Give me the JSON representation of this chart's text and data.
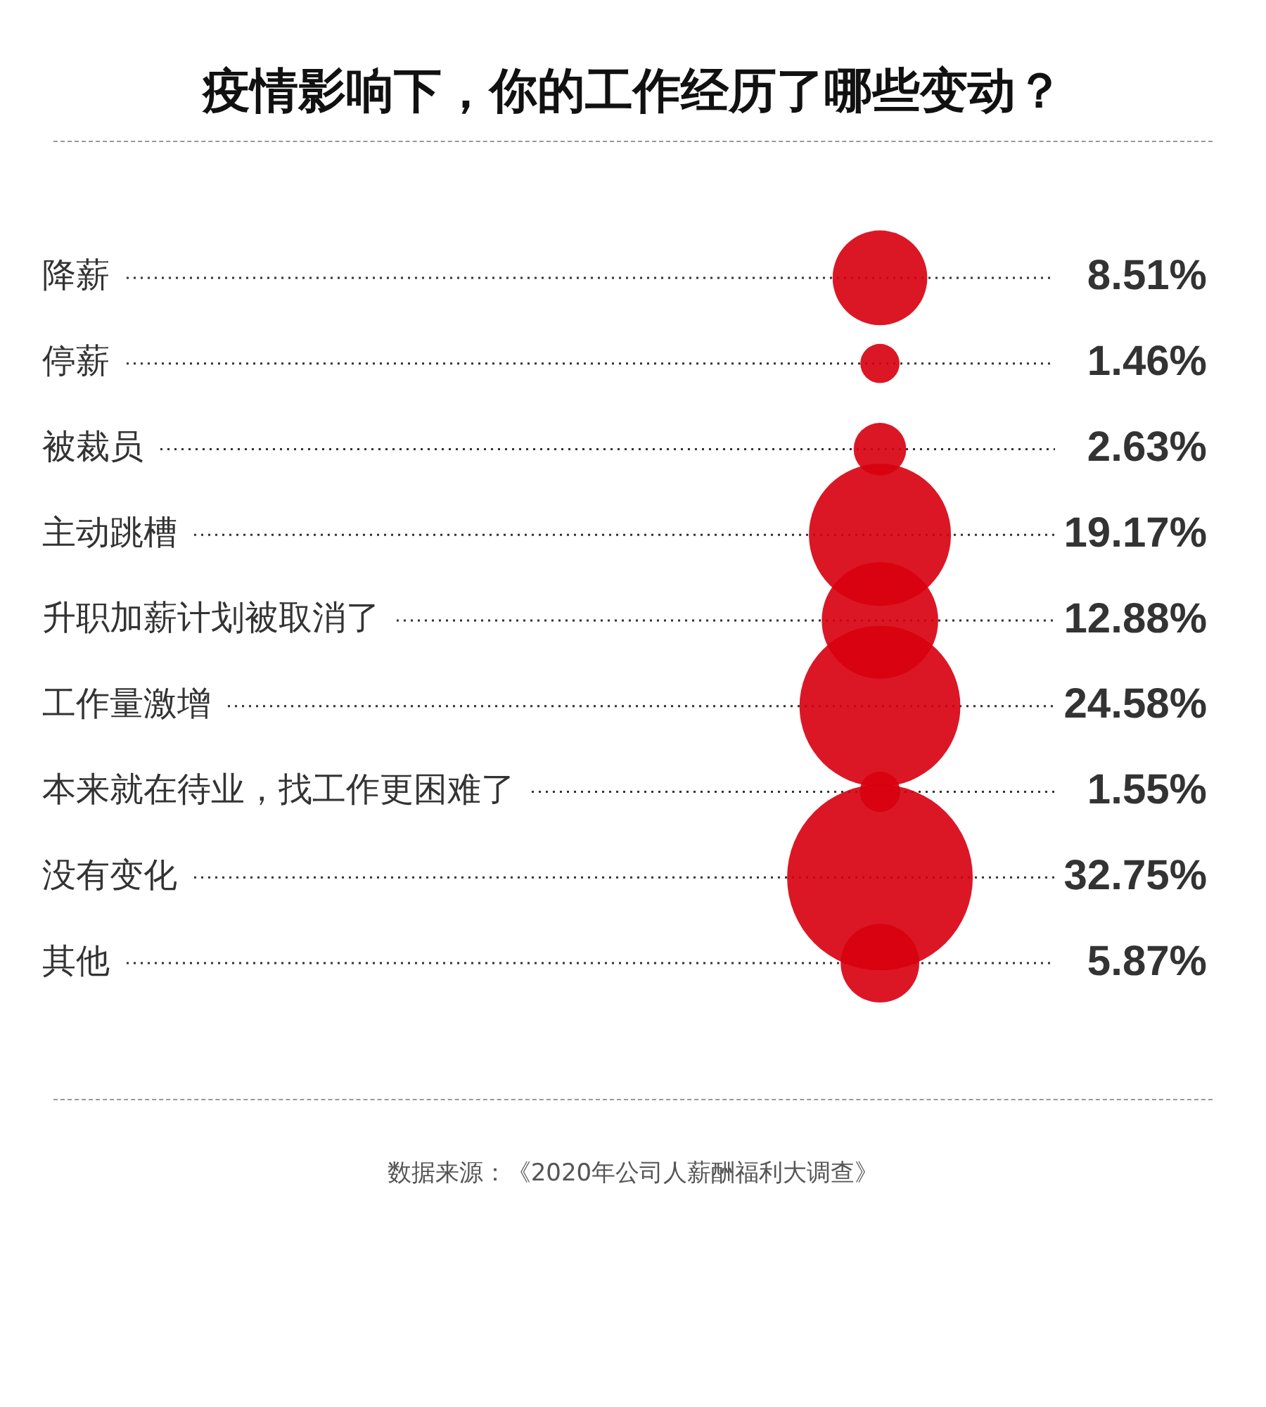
{
  "chart_data": {
    "type": "other",
    "title": "疫情影响下，你的工作经历了哪些变动？",
    "categories": [
      "降薪",
      "停薪",
      "被裁员",
      "主动跳槽",
      "升职加薪计划被取消了",
      "工作量激增",
      "本来就在待业，找工作更困难了",
      "没有变化",
      "其他"
    ],
    "values": [
      8.51,
      1.46,
      2.63,
      19.17,
      12.88,
      24.58,
      1.55,
      32.75,
      5.87
    ],
    "value_labels": [
      "8.51%",
      "1.46%",
      "2.63%",
      "19.17%",
      "12.88%",
      "24.58%",
      "1.55%",
      "32.75%",
      "5.87%"
    ],
    "color": "#d7000f",
    "annotations": [
      "数据来源：《2020年公司人薪酬福利大调查》"
    ]
  }
}
